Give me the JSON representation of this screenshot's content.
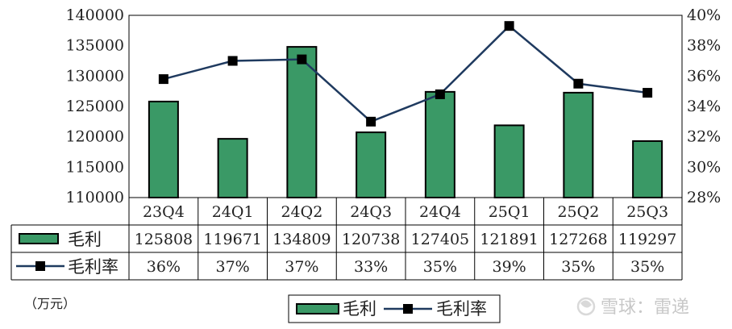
{
  "chart_data": {
    "type": "bar",
    "categories": [
      "23Q4",
      "24Q1",
      "24Q2",
      "24Q3",
      "24Q4",
      "25Q1",
      "25Q2",
      "25Q3"
    ],
    "series": [
      {
        "name": "毛利",
        "type": "bar",
        "axis": "left",
        "values": [
          125808,
          119671,
          134809,
          120738,
          127405,
          121891,
          127268,
          119297
        ],
        "labels": [
          "125808",
          "119671",
          "134809",
          "120738",
          "127405",
          "121891",
          "127268",
          "119297"
        ],
        "color": "#3a9966"
      },
      {
        "name": "毛利率",
        "type": "line",
        "axis": "right",
        "values": [
          35.8,
          37.0,
          37.1,
          33.0,
          34.8,
          39.3,
          35.5,
          34.9
        ],
        "labels": [
          "36%",
          "37%",
          "37%",
          "33%",
          "35%",
          "39%",
          "35%",
          "35%"
        ],
        "color": "#1f3a5f",
        "marker_color": "#000000"
      }
    ],
    "y_left": {
      "min": 110000,
      "max": 140000,
      "ticks": [
        "110000",
        "115000",
        "120000",
        "125000",
        "130000",
        "135000",
        "140000"
      ]
    },
    "y_right": {
      "min": 28,
      "max": 40,
      "ticks": [
        "28%",
        "30%",
        "32%",
        "34%",
        "36%",
        "38%",
        "40%"
      ]
    },
    "data_table": true,
    "legend_position": "bottom",
    "unit_label": "（万元）",
    "watermark": "雪球：雷递"
  }
}
